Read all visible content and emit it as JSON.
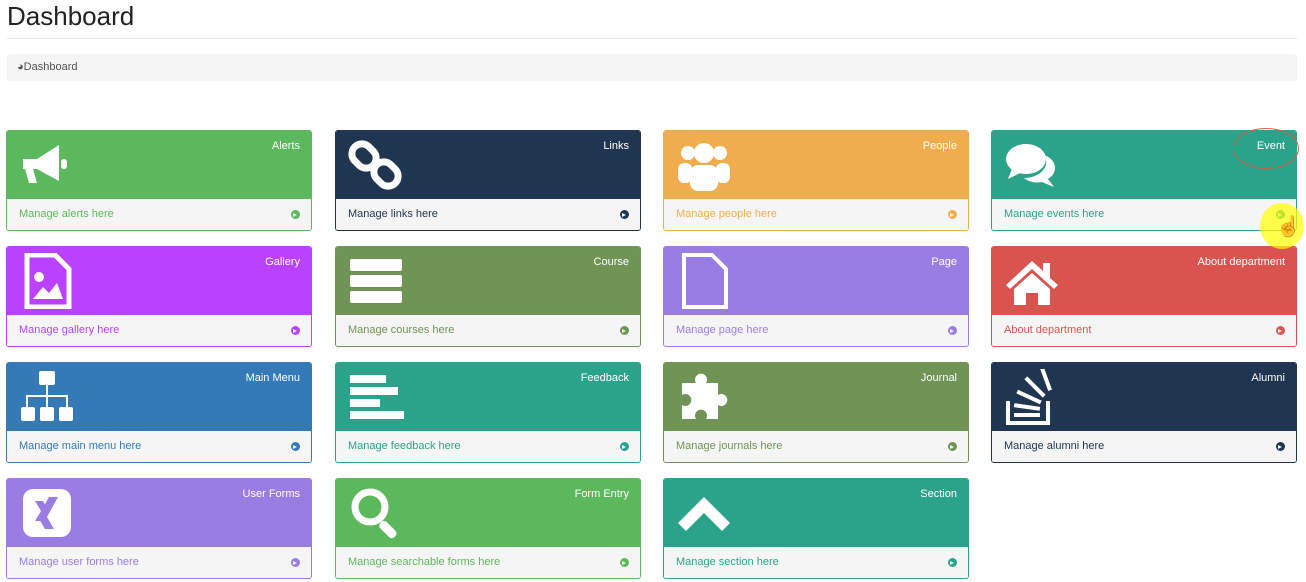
{
  "page": {
    "title": "Dashboard"
  },
  "breadcrumb": {
    "icon": "dashboard-icon",
    "label": "Dashboard"
  },
  "cards": [
    {
      "title": "Alerts",
      "link": "Manage alerts here",
      "icon": "bullhorn-icon",
      "color": "#5cb85c"
    },
    {
      "title": "Links",
      "link": "Manage links here",
      "icon": "link-icon",
      "color": "#1f3550"
    },
    {
      "title": "People",
      "link": "Manage people here",
      "icon": "users-icon",
      "color": "#f0ad4e"
    },
    {
      "title": "Event",
      "link": "Manage events here",
      "icon": "comments-icon",
      "color": "#2aa38a"
    },
    {
      "title": "Gallery",
      "link": "Manage gallery here",
      "icon": "file-image-icon",
      "color": "#b941ff"
    },
    {
      "title": "Course",
      "link": "Manage courses here",
      "icon": "server-icon",
      "color": "#6f9456"
    },
    {
      "title": "Page",
      "link": "Manage page here",
      "icon": "file-icon",
      "color": "#9a7de3"
    },
    {
      "title": "About department",
      "link": "About department",
      "icon": "home-icon",
      "color": "#d9534f"
    },
    {
      "title": "Main Menu",
      "link": "Manage main menu here",
      "icon": "sitemap-icon",
      "color": "#337ab7"
    },
    {
      "title": "Feedback",
      "link": "Manage feedback here",
      "icon": "align-left-icon",
      "color": "#2aa38a"
    },
    {
      "title": "Journal",
      "link": "Manage journals here",
      "icon": "puzzle-icon",
      "color": "#6f9456"
    },
    {
      "title": "Alumni",
      "link": "Manage alumni here",
      "icon": "stack-overflow-icon",
      "color": "#1f3550"
    },
    {
      "title": "User Forms",
      "link": "Manage user forms here",
      "icon": "xing-icon",
      "color": "#9a7de3"
    },
    {
      "title": "Form Entry",
      "link": "Manage searchable forms here",
      "icon": "search-icon",
      "color": "#5cb85c"
    },
    {
      "title": "Section",
      "link": "Manage section here",
      "icon": "chevron-up-icon",
      "color": "#2aa38a"
    }
  ]
}
